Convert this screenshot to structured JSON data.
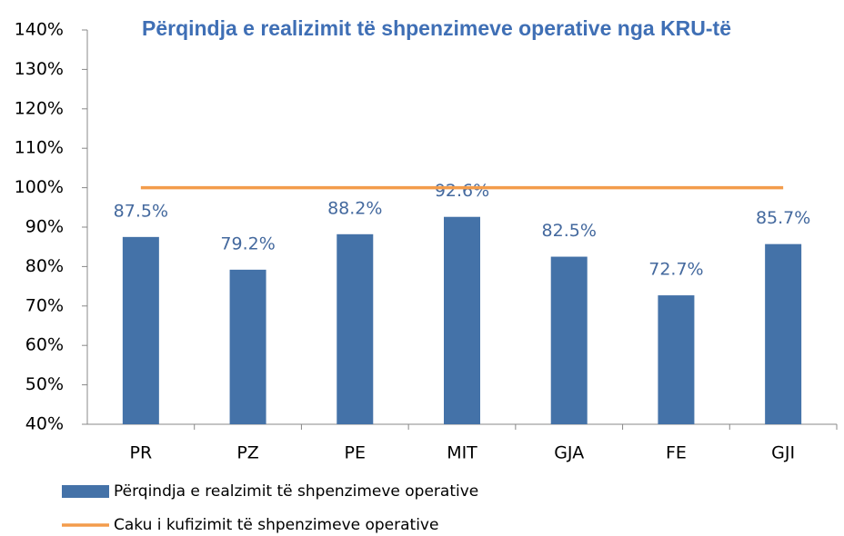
{
  "chart_data": {
    "type": "bar",
    "title": "Përqindja e realizimit të shpenzimeve operative nga KRU-të",
    "categories": [
      "PR",
      "PZ",
      "PE",
      "MIT",
      "GJA",
      "FE",
      "GJI"
    ],
    "series": [
      {
        "name": "Përqindja e realzimit të shpenzimeve operative",
        "color": "#4472a8",
        "type": "bar",
        "values": [
          87.5,
          79.2,
          88.2,
          92.6,
          82.5,
          72.7,
          85.7
        ],
        "value_labels": [
          "87.5%",
          "79.2%",
          "88.2%",
          "92.6%",
          "82.5%",
          "72.7%",
          "85.7%"
        ]
      },
      {
        "name": "Caku i kufizimit të shpenzimeve operative",
        "color": "#f39c4b",
        "type": "line",
        "values": [
          100,
          100,
          100,
          100,
          100,
          100,
          100
        ]
      }
    ],
    "ylim": [
      40,
      140
    ],
    "yticks": [
      {
        "value": 40,
        "label": "40%"
      },
      {
        "value": 50,
        "label": "50%"
      },
      {
        "value": 60,
        "label": "60%"
      },
      {
        "value": 70,
        "label": "70%"
      },
      {
        "value": 80,
        "label": "80%"
      },
      {
        "value": 90,
        "label": "90%"
      },
      {
        "value": 100,
        "label": "100%"
      },
      {
        "value": 110,
        "label": "110%"
      },
      {
        "value": 120,
        "label": "120%"
      },
      {
        "value": 130,
        "label": "130%"
      },
      {
        "value": 140,
        "label": "140%"
      }
    ],
    "grid": false,
    "legend": "bottom"
  }
}
